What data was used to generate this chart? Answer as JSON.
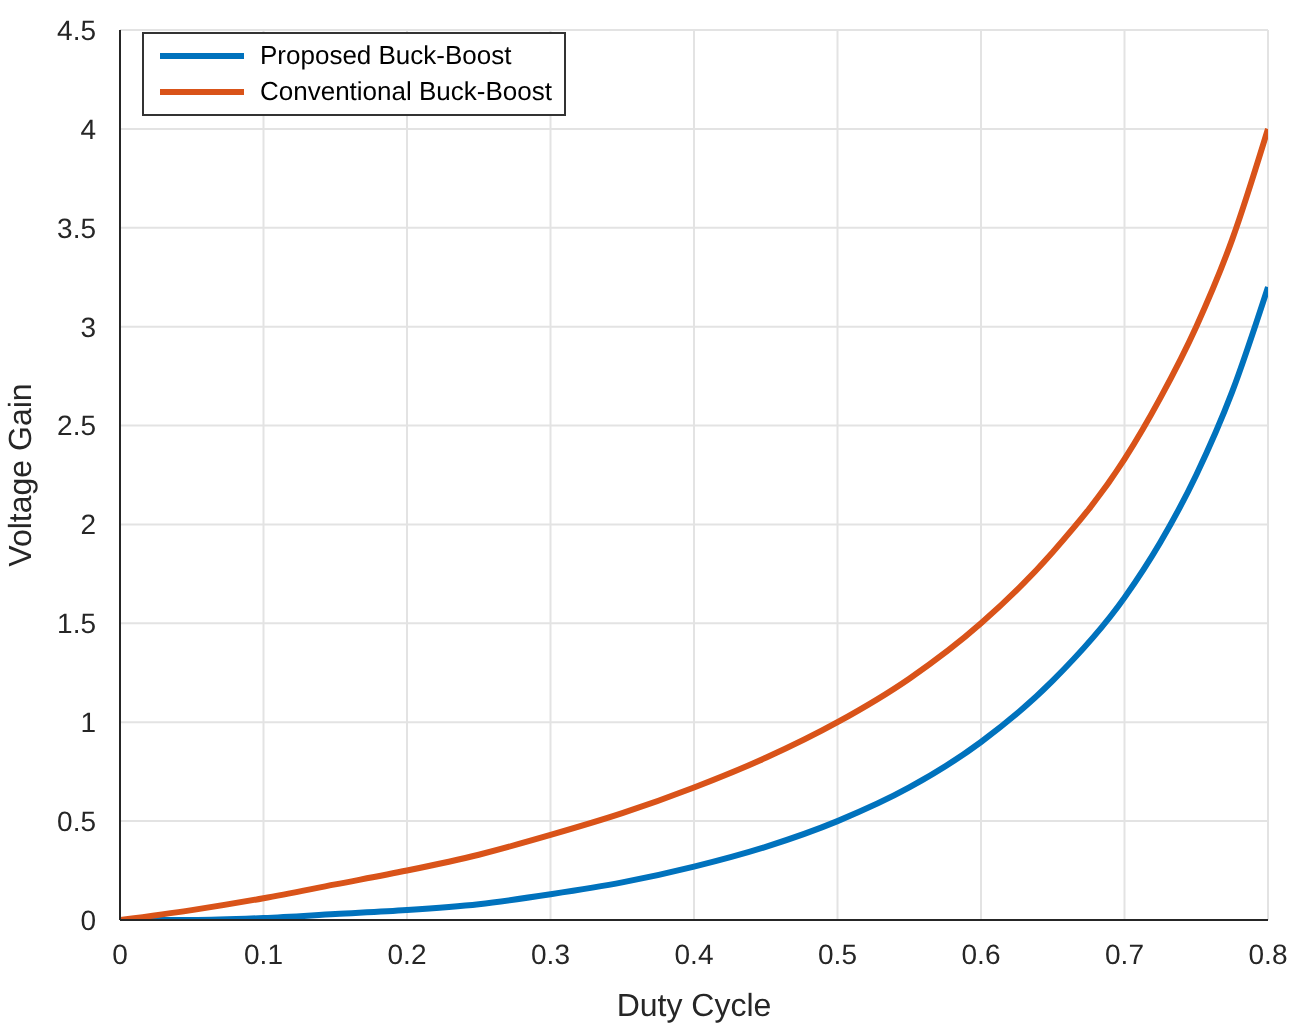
{
  "chart_data": {
    "type": "line",
    "xlabel": "Duty Cycle",
    "ylabel": "Voltage Gain",
    "x": [
      0,
      0.05,
      0.1,
      0.15,
      0.2,
      0.25,
      0.3,
      0.35,
      0.4,
      0.45,
      0.5,
      0.55,
      0.6,
      0.65,
      0.7,
      0.725,
      0.75,
      0.775,
      0.8
    ],
    "series": [
      {
        "name": "Proposed Buck-Boost",
        "color": "#0072bd",
        "values": [
          0,
          0,
          0.01,
          0.03,
          0.05,
          0.08,
          0.13,
          0.19,
          0.27,
          0.37,
          0.5,
          0.67,
          0.9,
          1.21,
          1.63,
          1.91,
          2.25,
          2.67,
          3.2
        ]
      },
      {
        "name": "Conventional Buck-Boost",
        "color": "#d95319",
        "values": [
          0,
          0.05,
          0.11,
          0.18,
          0.25,
          0.33,
          0.43,
          0.54,
          0.67,
          0.82,
          1,
          1.22,
          1.5,
          1.86,
          2.33,
          2.64,
          3,
          3.44,
          4
        ]
      }
    ],
    "xlim": [
      0,
      0.8
    ],
    "xticks": [
      0,
      0.1,
      0.2,
      0.3,
      0.4,
      0.5,
      0.6,
      0.7,
      0.8
    ],
    "ylim": [
      0,
      4.5
    ],
    "yticks": [
      0,
      0.5,
      1,
      1.5,
      2,
      2.5,
      3,
      3.5,
      4,
      4.5
    ],
    "grid": true,
    "legend": "top left",
    "marker": "none",
    "line_style": "solid"
  }
}
